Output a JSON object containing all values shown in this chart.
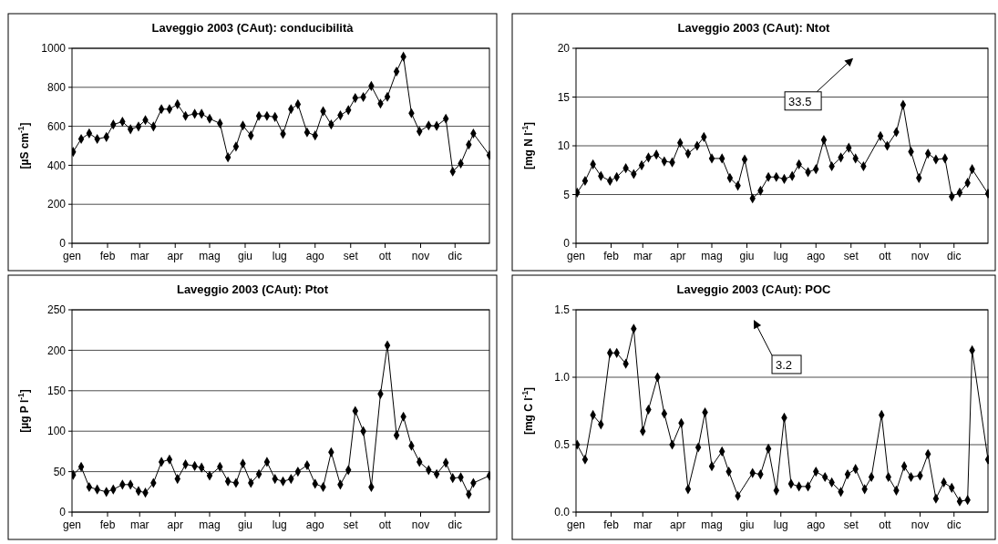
{
  "chart_data": [
    {
      "type": "line",
      "title": "Laveggio 2003 (CAut): conducibilità",
      "ylabel": "[µS cm$^{-1}$]",
      "xlim": [
        "--01-01",
        "--12-31"
      ],
      "ylim": [
        0,
        1000
      ],
      "yticks": [
        0,
        200,
        400,
        600,
        800,
        1000
      ],
      "xticks": [
        {
          "value": "--01-01",
          "label": "gen"
        },
        {
          "value": "--02-01",
          "label": "feb"
        },
        {
          "value": "--03-01",
          "label": "mar"
        },
        {
          "value": "--04-01",
          "label": "apr"
        },
        {
          "value": "--05-01",
          "label": "mag"
        },
        {
          "value": "--06-01",
          "label": "giu"
        },
        {
          "value": "--07-01",
          "label": "lug"
        },
        {
          "value": "--08-01",
          "label": "ago"
        },
        {
          "value": "--09-01",
          "label": "set"
        },
        {
          "value": "--10-01",
          "label": "ott"
        },
        {
          "value": "--11-01",
          "label": "nov"
        },
        {
          "value": "--12-01",
          "label": "dic"
        }
      ],
      "grid": "y",
      "marker": "diamond",
      "line_style": "solid",
      "x": [
        "--01-02",
        "--01-09",
        "--01-16",
        "--01-23",
        "--01-31",
        "--02-06",
        "--02-14",
        "--02-21",
        "--02-28",
        "--03-06",
        "--03-13",
        "--03-20",
        "--03-27",
        "--04-03",
        "--04-10",
        "--04-18",
        "--04-24",
        "--05-01",
        "--05-10",
        "--05-17",
        "--05-24",
        "--05-30",
        "--06-06",
        "--06-13",
        "--06-20",
        "--06-27",
        "--07-04",
        "--07-11",
        "--07-17",
        "--07-25",
        "--08-01",
        "--08-08",
        "--08-15",
        "--08-23",
        "--08-30",
        "--09-05",
        "--09-12",
        "--09-19",
        "--09-27",
        "--10-03",
        "--10-11",
        "--10-17",
        "--10-24",
        "--10-31",
        "--11-08",
        "--11-15",
        "--11-23",
        "--11-29",
        "--12-06",
        "--12-13",
        "--12-17",
        "--12-31"
      ],
      "series": [
        {
          "color": "#000000",
          "values": [
            469,
            535,
            564,
            535,
            545,
            609,
            624,
            585,
            599,
            632,
            599,
            688,
            688,
            713,
            653,
            664,
            664,
            639,
            615,
            441,
            496,
            604,
            553,
            653,
            653,
            648,
            561,
            688,
            713,
            569,
            553,
            677,
            609,
            656,
            683,
            745,
            750,
            807,
            716,
            751,
            881,
            957,
            667,
            574,
            604,
            602,
            639,
            368,
            409,
            506,
            563,
            452
          ]
        }
      ]
    },
    {
      "type": "line",
      "title": "Laveggio 2003 (CAut): Ntot",
      "ylabel": "[mg N l$^{-1}$]",
      "xlim": [
        "--01-01",
        "--12-31"
      ],
      "ylim": [
        0,
        20
      ],
      "yticks": [
        0,
        5,
        10,
        15,
        20
      ],
      "xticks": [
        {
          "value": "--01-01",
          "label": "gen"
        },
        {
          "value": "--02-01",
          "label": "feb"
        },
        {
          "value": "--03-01",
          "label": "mar"
        },
        {
          "value": "--04-01",
          "label": "apr"
        },
        {
          "value": "--05-01",
          "label": "mag"
        },
        {
          "value": "--06-01",
          "label": "giu"
        },
        {
          "value": "--07-01",
          "label": "lug"
        },
        {
          "value": "--08-01",
          "label": "ago"
        },
        {
          "value": "--09-01",
          "label": "set"
        },
        {
          "value": "--10-01",
          "label": "ott"
        },
        {
          "value": "--11-01",
          "label": "nov"
        },
        {
          "value": "--12-01",
          "label": "dic"
        }
      ],
      "grid": "y",
      "marker": "diamond",
      "line_style": "solid",
      "x": [
        "--01-02",
        "--01-09",
        "--01-16",
        "--01-23",
        "--01-31",
        "--02-06",
        "--02-14",
        "--02-21",
        "--02-28",
        "--03-06",
        "--03-13",
        "--03-20",
        "--03-27",
        "--04-03",
        "--04-10",
        "--04-18",
        "--04-24",
        "--05-01",
        "--05-10",
        "--05-17",
        "--05-24",
        "--05-30",
        "--06-06",
        "--06-13",
        "--06-20",
        "--06-27",
        "--07-04",
        "--07-11",
        "--07-17",
        "--07-25",
        "--08-01",
        "--08-08",
        "--08-15",
        "--08-23",
        "--08-30",
        "--09-05",
        "--09-12",
        "--09-19",
        "--09-27",
        "--10-03",
        "--10-11",
        "--10-17",
        "--10-24",
        "--10-31",
        "--11-08",
        "--11-15",
        "--11-23",
        "--11-29",
        "--12-06",
        "--12-13",
        "--12-17",
        "--12-31"
      ],
      "series": [
        {
          "color": "#000000",
          "values": [
            5.2,
            6.4,
            8.1,
            6.9,
            6.4,
            6.8,
            7.7,
            7.1,
            8.0,
            8.8,
            9.1,
            8.4,
            8.3,
            10.3,
            9.2,
            10.0,
            10.9,
            8.7,
            8.7,
            6.7,
            5.9,
            8.6,
            4.6,
            5.4,
            6.8,
            6.8,
            6.6,
            6.9,
            8.1,
            7.3,
            7.6,
            10.6,
            7.9,
            8.8,
            9.8,
            8.7,
            7.9,
            null,
            11.0,
            10.0,
            11.4,
            14.2,
            9.4,
            6.7,
            9.2,
            8.6,
            8.7,
            4.8,
            5.2,
            6.2,
            7.6,
            5.1
          ]
        }
      ],
      "annotations": [
        "33.5"
      ]
    },
    {
      "type": "line",
      "title": "Laveggio 2003 (CAut): Ptot",
      "ylabel": "[µg P l$^{-1}$]",
      "xlim": [
        "--01-01",
        "--12-31"
      ],
      "ylim": [
        0,
        250
      ],
      "yticks": [
        0,
        50,
        100,
        150,
        200,
        250
      ],
      "xticks": [
        {
          "value": "--01-01",
          "label": "gen"
        },
        {
          "value": "--02-01",
          "label": "feb"
        },
        {
          "value": "--03-01",
          "label": "mar"
        },
        {
          "value": "--04-01",
          "label": "apr"
        },
        {
          "value": "--05-01",
          "label": "mag"
        },
        {
          "value": "--06-01",
          "label": "giu"
        },
        {
          "value": "--07-01",
          "label": "lug"
        },
        {
          "value": "--08-01",
          "label": "ago"
        },
        {
          "value": "--09-01",
          "label": "set"
        },
        {
          "value": "--10-01",
          "label": "ott"
        },
        {
          "value": "--11-01",
          "label": "nov"
        },
        {
          "value": "--12-01",
          "label": "dic"
        }
      ],
      "grid": "y",
      "marker": "diamond",
      "line_style": "solid",
      "x": [
        "--01-02",
        "--01-09",
        "--01-16",
        "--01-23",
        "--01-31",
        "--02-06",
        "--02-14",
        "--02-21",
        "--02-28",
        "--03-06",
        "--03-13",
        "--03-20",
        "--03-27",
        "--04-03",
        "--04-10",
        "--04-18",
        "--04-24",
        "--05-01",
        "--05-10",
        "--05-17",
        "--05-24",
        "--05-30",
        "--06-06",
        "--06-13",
        "--06-20",
        "--06-27",
        "--07-04",
        "--07-11",
        "--07-17",
        "--07-25",
        "--08-01",
        "--08-08",
        "--08-15",
        "--08-23",
        "--08-30",
        "--09-05",
        "--09-12",
        "--09-19",
        "--09-27",
        "--10-03",
        "--10-11",
        "--10-17",
        "--10-24",
        "--10-31",
        "--11-08",
        "--11-15",
        "--11-23",
        "--11-29",
        "--12-06",
        "--12-13",
        "--12-17",
        "--12-31"
      ],
      "series": [
        {
          "color": "#000000",
          "values": [
            46,
            56,
            31,
            28,
            25,
            28,
            34,
            34,
            26,
            24,
            36,
            62,
            65,
            41,
            59,
            57,
            55,
            45,
            56,
            38,
            36,
            60,
            36,
            47,
            62,
            41,
            38,
            41,
            50,
            58,
            35,
            31,
            74,
            34,
            52,
            125,
            100,
            31,
            146,
            206,
            95,
            118,
            82,
            62,
            52,
            47,
            61,
            42,
            43,
            22,
            36,
            45
          ]
        }
      ]
    },
    {
      "type": "line",
      "title": "Laveggio 2003 (CAut): POC",
      "ylabel": "[mg C l$^{-1}$]",
      "xlim": [
        "--01-01",
        "--12-31"
      ],
      "ylim": [
        0,
        1.5
      ],
      "yticks": [
        {
          "value": 0,
          "label": "0.0"
        },
        {
          "value": 0.5,
          "label": "0.5"
        },
        {
          "value": 1,
          "label": "1.0"
        },
        {
          "value": 1.5,
          "label": "1.5"
        }
      ],
      "xticks": [
        {
          "value": "--01-01",
          "label": "gen"
        },
        {
          "value": "--02-01",
          "label": "feb"
        },
        {
          "value": "--03-01",
          "label": "mar"
        },
        {
          "value": "--04-01",
          "label": "apr"
        },
        {
          "value": "--05-01",
          "label": "mag"
        },
        {
          "value": "--06-01",
          "label": "giu"
        },
        {
          "value": "--07-01",
          "label": "lug"
        },
        {
          "value": "--08-01",
          "label": "ago"
        },
        {
          "value": "--09-01",
          "label": "set"
        },
        {
          "value": "--10-01",
          "label": "ott"
        },
        {
          "value": "--11-01",
          "label": "nov"
        },
        {
          "value": "--12-01",
          "label": "dic"
        }
      ],
      "grid": "y",
      "marker": "diamond",
      "line_style": "solid",
      "x": [
        "--01-02",
        "--01-09",
        "--01-16",
        "--01-23",
        "--01-31",
        "--02-06",
        "--02-14",
        "--02-21",
        "--03-01",
        "--03-06",
        "--03-14",
        "--03-20",
        "--03-27",
        "--04-04",
        "--04-10",
        "--04-19",
        "--04-25",
        "--05-01",
        "--05-10",
        "--05-16",
        "--05-24",
        "--05-30",
        "--06-06",
        "--06-13",
        "--06-20",
        "--06-27",
        "--07-04",
        "--07-10",
        "--07-17",
        "--07-25",
        "--08-01",
        "--08-09",
        "--08-15",
        "--08-23",
        "--08-29",
        "--09-05",
        "--09-13",
        "--09-19",
        "--09-28",
        "--10-04",
        "--10-11",
        "--10-18",
        "--10-24",
        "--11-01",
        "--11-08",
        "--11-15",
        "--11-22",
        "--11-29",
        "--12-06",
        "--12-13",
        "--12-17",
        "--12-31"
      ],
      "series": [
        {
          "color": "#000000",
          "values": [
            0.5,
            0.39,
            0.72,
            0.65,
            1.18,
            1.18,
            1.1,
            1.36,
            0.6,
            0.76,
            1.0,
            0.73,
            0.5,
            0.66,
            0.17,
            0.48,
            0.74,
            0.34,
            0.45,
            0.3,
            0.12,
            null,
            0.29,
            0.28,
            0.47,
            0.16,
            0.7,
            0.21,
            0.19,
            0.19,
            0.3,
            0.26,
            0.22,
            0.15,
            0.28,
            0.32,
            0.17,
            0.26,
            0.72,
            0.26,
            0.16,
            0.34,
            0.26,
            0.27,
            0.43,
            0.1,
            0.22,
            0.18,
            0.08,
            0.09,
            1.2,
            0.39
          ]
        }
      ],
      "annotations": [
        "3.2"
      ]
    }
  ]
}
